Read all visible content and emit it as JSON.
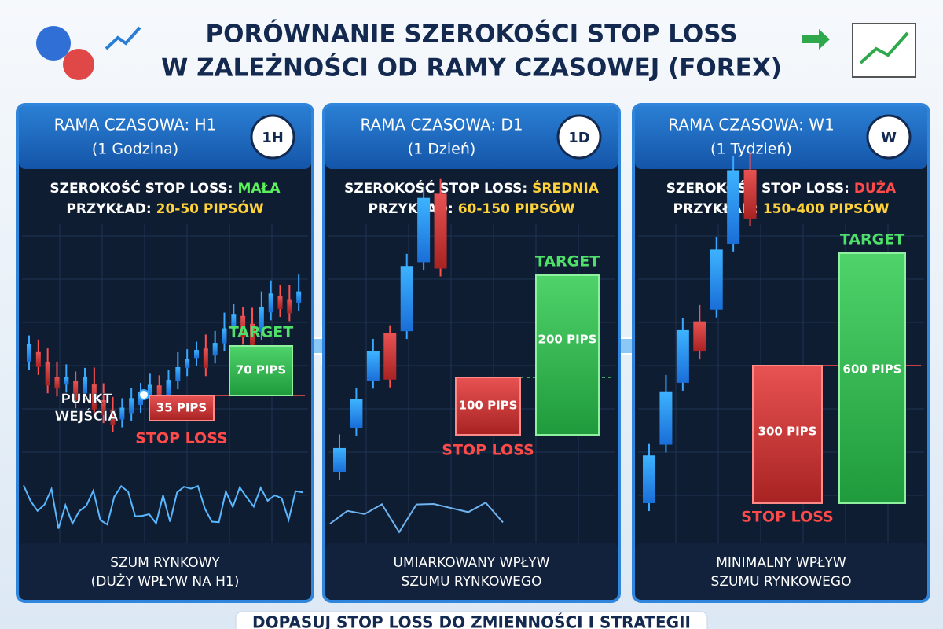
{
  "header": {
    "title_lines": [
      "PORÓWNANIE SZEROKOŚCI STOP LOSS",
      "W ZALEŻNOŚCI OD RAMY CZASOWEJ (FOREX)"
    ]
  },
  "panels": [
    {
      "title": "RAMA CZASOWA: H1",
      "subtitle": "(1 Godzina)",
      "badge": "1H",
      "width_label": "SZEROKOŚĆ STOP LOSS:",
      "width_value": "MAŁA",
      "example_label": "PRZYKŁAD:",
      "example_value": "20-50 PIPSÓW",
      "target_label": "TARGET",
      "target_pips": "70 PIPS",
      "stop_label": "STOP LOSS",
      "stop_pips": "35 PIPS",
      "entry_lines": [
        "PUNKT",
        "WEJŚCIA"
      ],
      "footer_lines": [
        "SZUM RYNKOWY",
        "(DUŻY WPŁYW NA H1)"
      ]
    },
    {
      "title": "RAMA CZASOWA: D1",
      "subtitle": "(1 Dzień)",
      "badge": "1D",
      "width_label": "SZEROKOŚĆ STOP LOSS:",
      "width_value": "ŚREDNIA",
      "example_label": "PRZYKŁAD:",
      "example_value": "60-150 PIPSÓW",
      "target_label": "TARGET",
      "target_pips": "200 PIPS",
      "stop_label": "STOP LOSS",
      "stop_pips": "100 PIPS",
      "footer_lines": [
        "UMIARKOWANY WPŁYW",
        "SZUMU RYNKOWEGO"
      ]
    },
    {
      "title": "RAMA CZASOWA: W1",
      "subtitle": "(1 Tydzień)",
      "badge": "W",
      "width_label": "SZEROKOŚĆ STOP LOSS:",
      "width_value": "DUŻA",
      "example_label": "PRZYKŁAD:",
      "example_value": "150-400 PIPSÓW",
      "target_label": "TARGET",
      "target_pips": "600 PIPS",
      "stop_label": "STOP LOSS",
      "stop_pips": "300 PIPS",
      "footer_lines": [
        "MINIMALNY WPŁYW",
        "SZUMU RYNKOWEGO"
      ]
    }
  ],
  "footer": "DOPASUJ STOP LOSS DO ZMIENNOŚCI I STRATEGII"
}
